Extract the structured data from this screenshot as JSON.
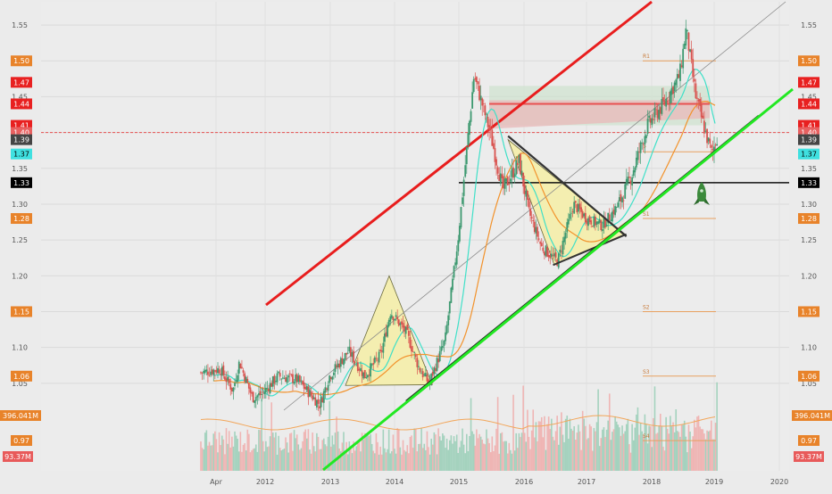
{
  "chart_data": {
    "type": "candlestick",
    "title": "",
    "xlabel": "",
    "ylabel": "",
    "ylim": [
      1.0,
      1.57
    ],
    "x_ticks": [
      "Apr",
      "2012",
      "2013",
      "2014",
      "2015",
      "2016",
      "2017",
      "2018",
      "2019",
      "2020"
    ],
    "y_ticks": [
      "1.55",
      "1.50",
      "1.45",
      "1.40",
      "1.35",
      "1.30",
      "1.25",
      "1.20",
      "1.15",
      "1.10",
      "1.05"
    ],
    "price_tags": [
      {
        "text": "1.50",
        "value": 1.5,
        "color": "#e8832a"
      },
      {
        "text": "1.47",
        "value": 1.47,
        "color": "#e82020"
      },
      {
        "text": "1.44",
        "value": 1.44,
        "color": "#e82020"
      },
      {
        "text": "1.41",
        "value": 1.41,
        "color": "#e82020"
      },
      {
        "text": "1.40",
        "value": 1.4,
        "color": "#e86060"
      },
      {
        "text": "1.39",
        "value": 1.39,
        "color": "#444444"
      },
      {
        "text": "1.37",
        "value": 1.37,
        "color": "#3fe0e0"
      },
      {
        "text": "1.33",
        "value": 1.33,
        "color": "#000000"
      },
      {
        "text": "1.28",
        "value": 1.28,
        "color": "#e8832a"
      },
      {
        "text": "1.15",
        "value": 1.15,
        "color": "#e8832a"
      },
      {
        "text": "1.06",
        "value": 1.06,
        "color": "#e8832a"
      }
    ],
    "volume_tags": [
      {
        "text": "396.041M",
        "color": "#e8832a"
      },
      {
        "text": "0.97",
        "color": "#e8832a"
      },
      {
        "text": "93.37M",
        "color": "#e85a5a"
      }
    ],
    "pivot_labels": [
      {
        "text": "R1",
        "value": 1.5
      },
      {
        "text": "P",
        "value": 1.373
      },
      {
        "text": "S1",
        "value": 1.28
      },
      {
        "text": "S2",
        "value": 1.15
      },
      {
        "text": "S3",
        "value": 1.06
      },
      {
        "text": "S4",
        "value": 0.97
      }
    ],
    "horizontal_lines": {
      "support": 1.33,
      "current_price": 1.4,
      "resistance_box": 1.44
    },
    "colors": {
      "up": "#3d9970",
      "down": "#d9534f",
      "ma_fast": "#3fe0c8",
      "ma_slow": "#f2922b",
      "channel_top": "#e81d1d",
      "trend_green": "#22e822",
      "trend_black": "#222222",
      "pattern_fill": "#f4eeb0"
    }
  }
}
